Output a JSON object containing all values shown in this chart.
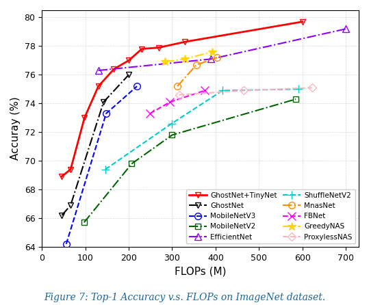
{
  "title": "Figure 7: Top-1 Accuracy v.s. FLOPs on ImageNet dataset.",
  "xlabel": "FLOPs (M)",
  "ylabel": "Accuray (%)",
  "xlim": [
    0,
    730
  ],
  "ylim": [
    64,
    80.5
  ],
  "xticks": [
    0,
    100,
    200,
    300,
    400,
    500,
    600,
    700
  ],
  "yticks": [
    64,
    66,
    68,
    70,
    72,
    74,
    76,
    78,
    80
  ],
  "series": [
    {
      "label": "GhostNet+TinyNet",
      "x": [
        45,
        66,
        98,
        130,
        166,
        200,
        230,
        270,
        330,
        600
      ],
      "y": [
        68.9,
        69.4,
        73.0,
        75.2,
        76.4,
        77.0,
        77.8,
        77.9,
        78.3,
        79.7
      ],
      "color": "#ff0000",
      "linestyle": "-",
      "marker": "v",
      "markersize": 6,
      "linewidth": 2,
      "fillstyle": "none"
    },
    {
      "label": "GhostNet",
      "x": [
        46,
        66,
        142,
        200
      ],
      "y": [
        66.2,
        66.9,
        74.1,
        76.0
      ],
      "color": "#000000",
      "linestyle": "-.",
      "marker": "v",
      "markersize": 6,
      "linewidth": 1.5,
      "fillstyle": "none"
    },
    {
      "label": "MobileNetV3",
      "x": [
        56,
        148,
        219
      ],
      "y": [
        64.2,
        73.3,
        75.2
      ],
      "color": "#0000ff",
      "linestyle": "--",
      "marker": "o",
      "markersize": 7,
      "linewidth": 1.5,
      "fillstyle": "none"
    },
    {
      "label": "MobileNetV2",
      "x": [
        97,
        207,
        300,
        585
      ],
      "y": [
        65.7,
        69.8,
        71.8,
        74.3
      ],
      "color": "#006400",
      "linestyle": "-.",
      "marker": "s",
      "markersize": 6,
      "linewidth": 1.5,
      "fillstyle": "none"
    },
    {
      "label": "EfficientNet",
      "x": [
        130,
        390,
        700
      ],
      "y": [
        76.3,
        77.1,
        79.2
      ],
      "color": "#8b00ff",
      "linestyle": "-.",
      "marker": "^",
      "markersize": 7,
      "linewidth": 1.5,
      "fillstyle": "none"
    },
    {
      "label": "ShuffleNetV2",
      "x": [
        146,
        299,
        416,
        591
      ],
      "y": [
        69.4,
        72.6,
        74.9,
        75.0
      ],
      "color": "#00cccc",
      "linestyle": "--",
      "marker": "+",
      "markersize": 8,
      "linewidth": 1.5,
      "fillstyle": "full"
    },
    {
      "label": "MnasNet",
      "x": [
        312,
        356,
        404
      ],
      "y": [
        75.2,
        76.7,
        77.2
      ],
      "color": "#ff8c00",
      "linestyle": "-.",
      "marker": "o",
      "markersize": 7,
      "linewidth": 1.5,
      "fillstyle": "none"
    },
    {
      "label": "FBNet",
      "x": [
        249,
        295,
        375
      ],
      "y": [
        73.3,
        74.1,
        74.9
      ],
      "color": "#ff00ff",
      "linestyle": "--",
      "marker": "x",
      "markersize": 8,
      "linewidth": 1.5,
      "fillstyle": "full"
    },
    {
      "label": "GreedyNAS",
      "x": [
        284,
        329,
        392
      ],
      "y": [
        76.9,
        77.1,
        77.6
      ],
      "color": "#ffd700",
      "linestyle": "-.",
      "marker": "*",
      "markersize": 9,
      "linewidth": 1.5,
      "fillstyle": "full"
    },
    {
      "label": "ProxylessNAS",
      "x": [
        316,
        465,
        622
      ],
      "y": [
        74.6,
        74.9,
        75.1
      ],
      "color": "#ffb6c1",
      "linestyle": "--",
      "marker": "D",
      "markersize": 6,
      "linewidth": 1.5,
      "fillstyle": "none"
    }
  ],
  "legend_cols": 2,
  "figsize": [
    5.39,
    4.46
  ],
  "dpi": 100,
  "background": "#ffffff"
}
